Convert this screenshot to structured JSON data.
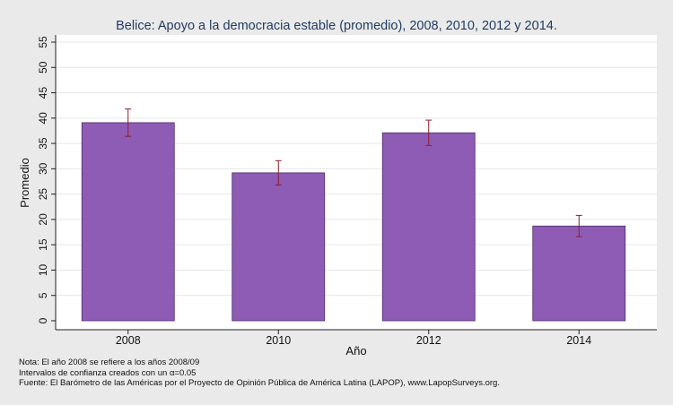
{
  "chart_data": {
    "type": "bar",
    "title": "Belice: Apoyo a la democracia estable (promedio), 2008, 2010, 2012 y 2014.",
    "xlabel": "Año",
    "ylabel": "Promedio",
    "categories": [
      "2008",
      "2010",
      "2012",
      "2014"
    ],
    "values": [
      39.1,
      29.2,
      37.1,
      18.7
    ],
    "ci_low": [
      36.4,
      26.8,
      34.6,
      16.6
    ],
    "ci_high": [
      41.8,
      31.6,
      39.6,
      20.8
    ],
    "ylim": [
      0,
      55
    ],
    "yticks": [
      "0",
      "5",
      "10",
      "15",
      "20",
      "25",
      "30",
      "35",
      "40",
      "45",
      "50",
      "55"
    ],
    "grid": true,
    "legend": "none",
    "colors": {
      "bar_fill": "#8e5bb5",
      "bar_stroke": "#4d2c68",
      "error_bar": "#8a1f2a",
      "plot_bg": "#ffffff",
      "figure_bg": "#eaeaea",
      "grid": "#e6e6e6"
    }
  },
  "notes": [
    "Nota: El año 2008 se refiere a los años 2008/09",
    "Intervalos de confianza creados con un α=0.05",
    "Fuente: El Barómetro de las Américas por el Proyecto de Opinión Pública de América Latina (LAPOP), www.LapopSurveys.org."
  ]
}
